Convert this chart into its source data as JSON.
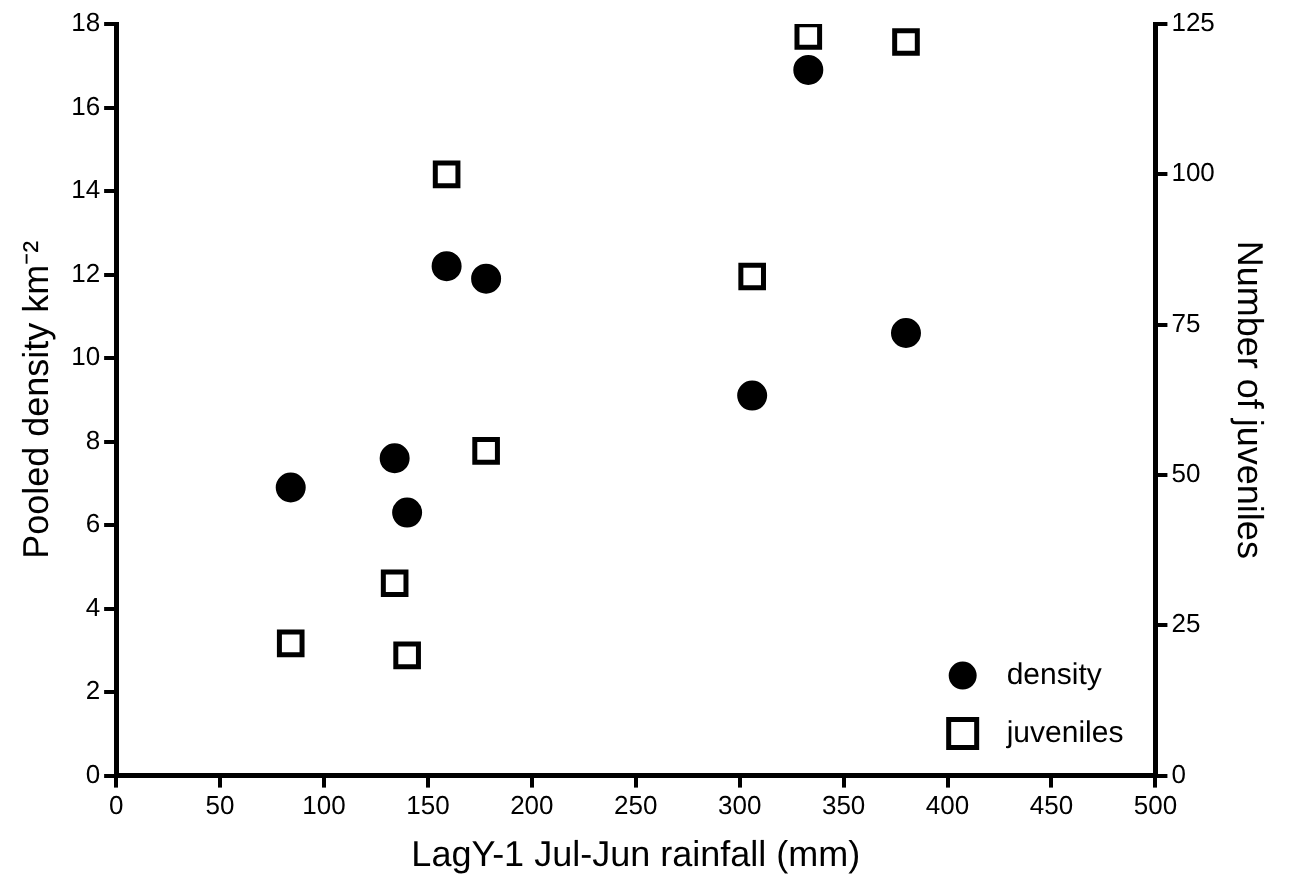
{
  "chart_data": {
    "type": "scatter",
    "xlabel": "LagY-1 Jul-Jun rainfall (mm)",
    "ylabel": "Pooled density km⁻²",
    "y2label": "Number of juveniles",
    "xlim": [
      0,
      500
    ],
    "xticks": [
      0,
      50,
      100,
      150,
      200,
      250,
      300,
      350,
      400,
      450,
      500
    ],
    "ylim": [
      0,
      18
    ],
    "yticks": [
      0,
      2,
      4,
      6,
      8,
      10,
      12,
      14,
      16,
      18
    ],
    "y2lim": [
      0,
      125
    ],
    "y2ticks": [
      0,
      25,
      50,
      75,
      100,
      125
    ],
    "grid": false,
    "legend": "bottom right",
    "series": [
      {
        "name": "density",
        "color": "#000000",
        "marker": "circle",
        "x": [
          84,
          134,
          140,
          159,
          178,
          306,
          333,
          380
        ],
        "values": [
          6.9,
          7.6,
          6.3,
          12.2,
          11.9,
          9.1,
          16.9,
          10.6
        ]
      },
      {
        "name": "juveniles",
        "color": "#000000",
        "marker": "square",
        "axis": "y2",
        "x": [
          84,
          134,
          140,
          159,
          178,
          306,
          333,
          380
        ],
        "values": [
          22,
          32,
          20,
          100,
          54,
          83,
          123,
          122
        ]
      }
    ]
  }
}
